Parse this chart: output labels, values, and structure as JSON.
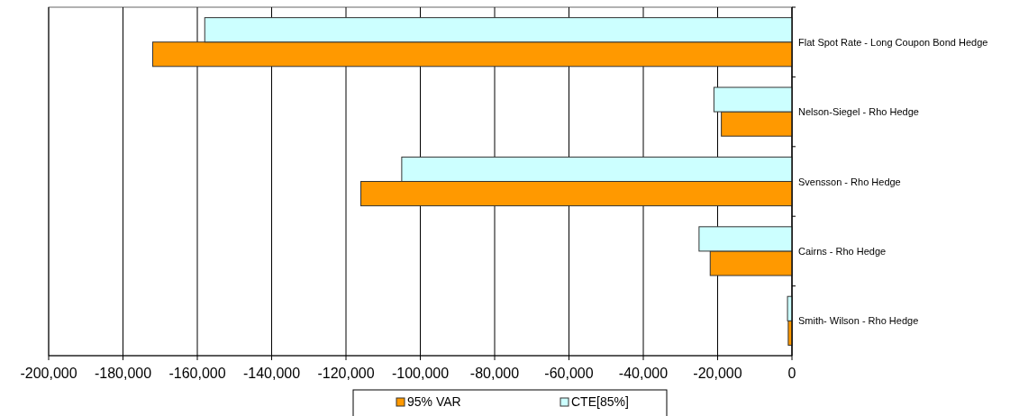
{
  "chart_data": {
    "type": "bar",
    "orientation": "horizontal",
    "categories": [
      "Flat Spot Rate - Long Coupon Bond Hedge",
      "Nelson-Siegel - Rho Hedge",
      "Svensson - Rho Hedge",
      "Cairns - Rho Hedge",
      "Smith- Wilson - Rho Hedge"
    ],
    "series": [
      {
        "name": "95% VAR",
        "color": "#ff9900",
        "values": [
          -172000,
          -19000,
          -116000,
          -22000,
          -1000
        ]
      },
      {
        "name": "CTE[85%]",
        "color": "#ccffff",
        "values": [
          -158000,
          -21000,
          -105000,
          -25000,
          -1200
        ]
      }
    ],
    "xlim": [
      -200000,
      0
    ],
    "xticks": [
      {
        "value": -200000,
        "label": "-200,000"
      },
      {
        "value": -180000,
        "label": "-180,000"
      },
      {
        "value": -160000,
        "label": "-160,000"
      },
      {
        "value": -140000,
        "label": "-140,000"
      },
      {
        "value": -120000,
        "label": "-120,000"
      },
      {
        "value": -100000,
        "label": "-100,000"
      },
      {
        "value": -80000,
        "label": "-80,000"
      },
      {
        "value": -60000,
        "label": "-60,000"
      },
      {
        "value": -40000,
        "label": "-40,000"
      },
      {
        "value": -20000,
        "label": "-20,000"
      },
      0
    ],
    "grid": "x",
    "legend": "bottom"
  }
}
